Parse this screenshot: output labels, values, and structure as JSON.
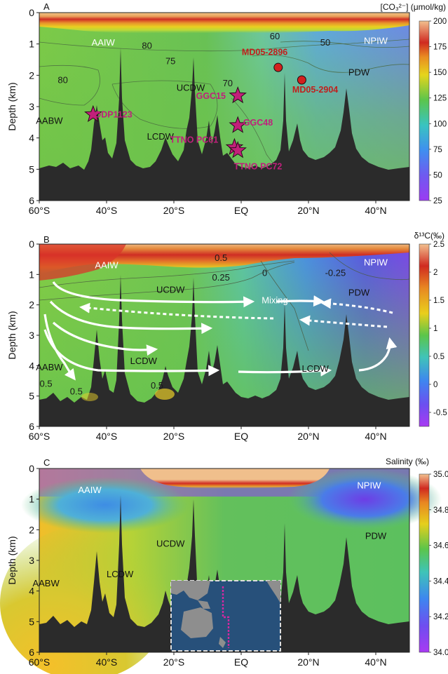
{
  "chart_data": [
    {
      "type": "heatmap",
      "panel": "A",
      "colorbar_title": "[CO₃²⁻] (μmol/kg)",
      "colorbar_ticks": [
        25,
        50,
        75,
        100,
        125,
        150,
        175,
        200
      ],
      "colorbar_range": [
        25,
        200
      ],
      "ylabel": "Depth (km)",
      "yticks": [
        0,
        1,
        2,
        3,
        4,
        5,
        6
      ],
      "xticks": [
        "60°S",
        "40°S",
        "20°S",
        "EQ",
        "20°N",
        "40°N"
      ],
      "xlim": [
        -60,
        50
      ],
      "ylim": [
        6,
        0
      ],
      "contours": [
        {
          "value": "80",
          "x": -28,
          "y": 1.15
        },
        {
          "value": "75",
          "x": -21,
          "y": 1.65
        },
        {
          "value": "80",
          "x": -53,
          "y": 2.25
        },
        {
          "value": "70",
          "x": -4,
          "y": 2.35
        },
        {
          "value": "60",
          "x": 10,
          "y": 0.85
        },
        {
          "value": "50",
          "x": 25,
          "y": 1.05
        }
      ],
      "water_masses": [
        {
          "name": "AAIW",
          "x": -41,
          "y": 1.05,
          "color": "#ffffff"
        },
        {
          "name": "NPIW",
          "x": 40,
          "y": 1.0,
          "color": "#ffffff"
        },
        {
          "name": "UCDW",
          "x": -15,
          "y": 2.5,
          "color": "#111111"
        },
        {
          "name": "PDW",
          "x": 35,
          "y": 2.0,
          "color": "#111111"
        },
        {
          "name": "AABW",
          "x": -57,
          "y": 3.55,
          "color": "#111111"
        },
        {
          "name": "LCDW",
          "x": -24,
          "y": 4.05,
          "color": "#111111"
        }
      ],
      "sites": [
        {
          "name": "MD05-2896",
          "marker": "circle",
          "x": 11,
          "y": 1.75,
          "label_x": 7,
          "label_y": 1.35
        },
        {
          "name": "MD05-2904",
          "marker": "circle",
          "x": 18,
          "y": 2.15,
          "label_x": 22,
          "label_y": 2.55
        },
        {
          "name": "GGC15",
          "marker": "star",
          "x": -1,
          "y": 2.65,
          "label_x": -9,
          "label_y": 2.75
        },
        {
          "name": "ODP1123",
          "marker": "star",
          "x": -44,
          "y": 3.25,
          "label_x": -38,
          "label_y": 3.35
        },
        {
          "name": "GGC48",
          "marker": "star",
          "x": -1,
          "y": 3.6,
          "label_x": 5,
          "label_y": 3.6
        },
        {
          "name": "TTNO PC61",
          "marker": "star",
          "x": -2,
          "y": 4.3,
          "label_x": -14,
          "label_y": 4.15
        },
        {
          "name": "TTNO PC72",
          "marker": "star",
          "x": -1,
          "y": 4.4,
          "label_x": 5,
          "label_y": 5.0
        }
      ]
    },
    {
      "type": "heatmap",
      "panel": "B",
      "colorbar_title": "δ¹³C(‰)",
      "colorbar_ticks": [
        -0.5,
        0,
        0.5,
        1,
        1.5,
        2,
        2.5
      ],
      "colorbar_range": [
        -0.75,
        2.5
      ],
      "ylabel": "Depth (km)",
      "yticks": [
        0,
        1,
        2,
        3,
        4,
        5,
        6
      ],
      "xticks": [
        "60°S",
        "40°S",
        "20°S",
        "EQ",
        "20°N",
        "40°N"
      ],
      "xlim": [
        -60,
        50
      ],
      "ylim": [
        6,
        0
      ],
      "contours": [
        {
          "value": "0.5",
          "x": -6,
          "y": 0.55
        },
        {
          "value": "0.25",
          "x": -6,
          "y": 1.2
        },
        {
          "value": "0",
          "x": 7,
          "y": 1.05
        },
        {
          "value": "-0.25",
          "x": 28,
          "y": 1.05
        },
        {
          "value": "0.5",
          "x": -58,
          "y": 4.7
        },
        {
          "value": "0.5",
          "x": -49,
          "y": 4.95
        },
        {
          "value": "0.5",
          "x": -25,
          "y": 4.75
        }
      ],
      "water_masses": [
        {
          "name": "AAIW",
          "x": -40,
          "y": 0.8,
          "color": "#ffffff"
        },
        {
          "name": "NPIW",
          "x": 40,
          "y": 0.7,
          "color": "#ffffff"
        },
        {
          "name": "UCDW",
          "x": -21,
          "y": 1.6,
          "color": "#111111"
        },
        {
          "name": "PDW",
          "x": 35,
          "y": 1.7,
          "color": "#111111"
        },
        {
          "name": "Mixing",
          "x": 10,
          "y": 1.95,
          "color": "#ffffff"
        },
        {
          "name": "AABW",
          "x": -57,
          "y": 4.15,
          "color": "#111111"
        },
        {
          "name": "LCDW",
          "x": -29,
          "y": 3.95,
          "color": "#111111"
        },
        {
          "name": "LCDW",
          "x": 22,
          "y": 4.2,
          "color": "#111111"
        }
      ]
    },
    {
      "type": "heatmap",
      "panel": "C",
      "colorbar_title": "Salinity (‰)",
      "colorbar_ticks": [
        34.0,
        34.2,
        34.4,
        34.6,
        34.8,
        35.0
      ],
      "colorbar_range": [
        34.0,
        35.0
      ],
      "ylabel": "Depth (km)",
      "yticks": [
        0,
        1,
        2,
        3,
        4,
        5,
        6
      ],
      "xticks": [
        "60°S",
        "40°S",
        "20°S",
        "EQ",
        "20°N",
        "40°N"
      ],
      "xlim": [
        -60,
        50
      ],
      "ylim": [
        6,
        0
      ],
      "water_masses": [
        {
          "name": "AAIW",
          "x": -45,
          "y": 0.8,
          "color": "#ffffff"
        },
        {
          "name": "NPIW",
          "x": 38,
          "y": 0.65,
          "color": "#ffffff"
        },
        {
          "name": "UCDW",
          "x": -21,
          "y": 2.55,
          "color": "#111111"
        },
        {
          "name": "PDW",
          "x": 40,
          "y": 2.3,
          "color": "#111111"
        },
        {
          "name": "AABW",
          "x": -58,
          "y": 3.85,
          "color": "#111111"
        },
        {
          "name": "LCDW",
          "x": -36,
          "y": 3.55,
          "color": "#111111"
        }
      ],
      "inset": "map-inset"
    }
  ],
  "panel_labels": [
    "A",
    "B",
    "C"
  ]
}
